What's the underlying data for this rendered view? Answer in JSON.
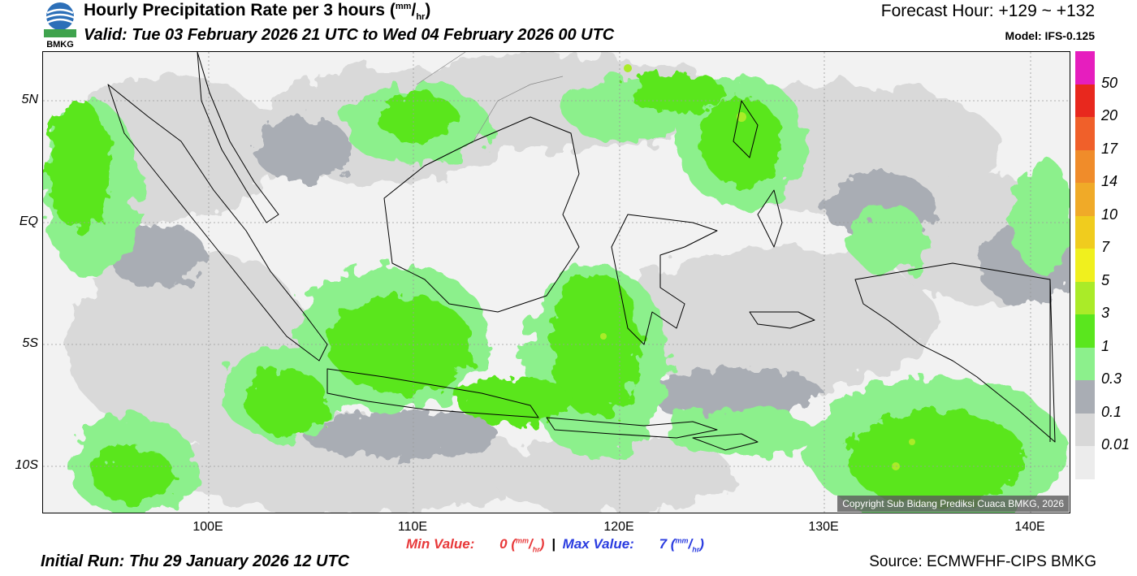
{
  "header": {
    "logo_text": "BMKG",
    "title": "Hourly Precipitation Rate per 3 hours (",
    "title_unit_num": "mm",
    "title_unit_den": "hr",
    "title_close": ")",
    "valid": "Valid: Tue 03 February 2026 21 UTC to Wed 04 February 2026 00 UTC",
    "forecast_hour": "Forecast Hour: +129 ~ +132",
    "model": "Model: IFS-0.125"
  },
  "map": {
    "lat_labels": [
      "5N",
      "EQ",
      "5S",
      "10S"
    ],
    "lon_labels": [
      "100E",
      "110E",
      "120E",
      "130E",
      "140E"
    ],
    "copyright": "Copyright Sub Bidang Prediksi Cuaca BMKG, 2026"
  },
  "legend": {
    "ticks": [
      "50",
      "20",
      "17",
      "14",
      "10",
      "7",
      "5",
      "3",
      "1",
      "0.3",
      "0.1",
      "0.01"
    ],
    "colors": [
      "#e61ebe",
      "#e8281e",
      "#f0602a",
      "#f08c2a",
      "#f0aa28",
      "#f0cc1e",
      "#f0f01e",
      "#aaeb28",
      "#5ae61e",
      "#8cf08c",
      "#a9adb4",
      "#d8d8d8",
      "#ececec"
    ]
  },
  "footer": {
    "min_label": "Min Value:",
    "min_value": "0",
    "separator": "|",
    "max_label": "Max Value:",
    "max_value": "7",
    "unit_num": "mm",
    "unit_den": "hr",
    "initial_run": "Initial Run: Thu 29 January 2026 12 UTC",
    "source": "Source: ECMWFHF-CIPS BMKG"
  }
}
